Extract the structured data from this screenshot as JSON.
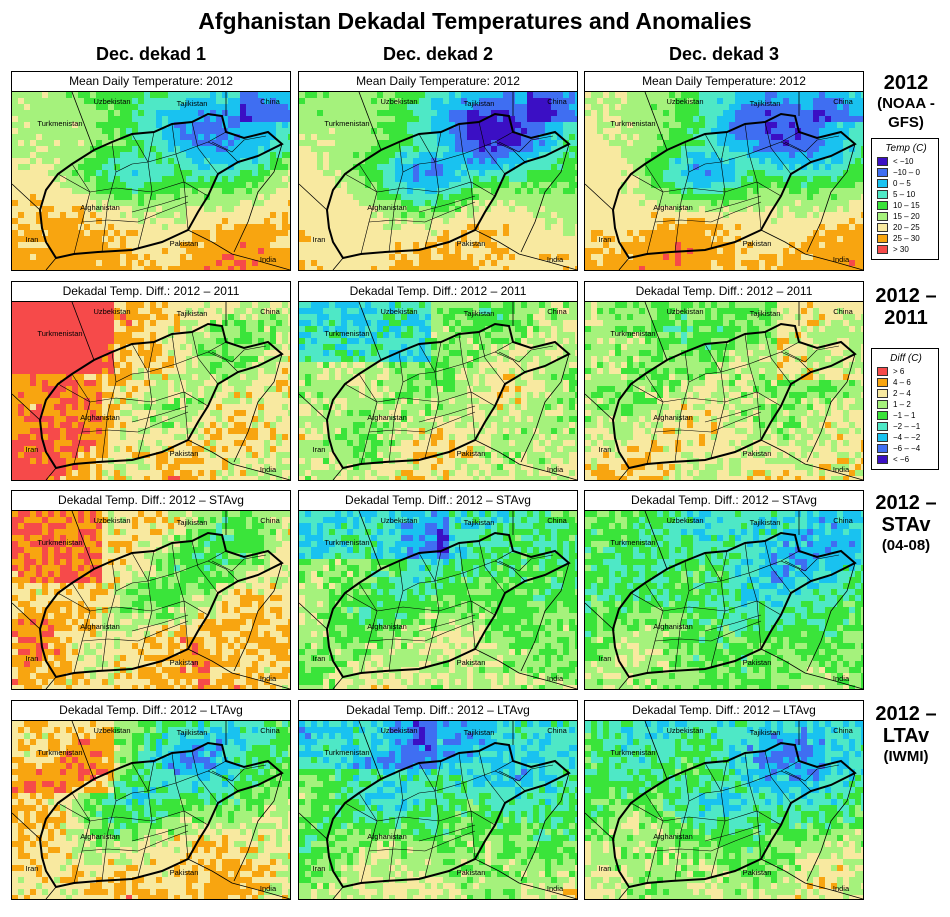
{
  "title": "Afghanistan Dekadal Temperatures and Anomalies",
  "columns": [
    "Dec. dekad 1",
    "Dec. dekad 2",
    "Dec. dekad 3"
  ],
  "rows": [
    {
      "panel_title": "Mean Daily Temperature: 2012",
      "label_main": "2012",
      "label_sub": "(NOAA -GFS)"
    },
    {
      "panel_title": "Dekadal Temp. Diff.: 2012 – 2011",
      "label_main": "2012 –2011",
      "label_sub": ""
    },
    {
      "panel_title": "Dekadal Temp. Diff.: 2012 – STAvg",
      "label_main": "2012 –STAv",
      "label_sub": "(04-08)"
    },
    {
      "panel_title": "Dekadal Temp. Diff.: 2012 – LTAvg",
      "label_main": "2012 –LTAv",
      "label_sub": "(IWMI)"
    }
  ],
  "map_labels": {
    "uzbekistan": "Uzbekistan",
    "tajikistan": "Tajikistan",
    "china": "China",
    "turkmenistan": "Turkmenistan",
    "afghanistan": "Afghanistan",
    "iran": "Iran",
    "pakistan": "Pakistan",
    "india": "India"
  },
  "legend_temp": {
    "title": "Temp (C)",
    "items": [
      {
        "label": "< −10",
        "color": "#3b0fc4"
      },
      {
        "label": "−10 – 0",
        "color": "#3f6ef2"
      },
      {
        "label": "0 – 5",
        "color": "#19c2f0"
      },
      {
        "label": "5 – 10",
        "color": "#4ee8c6"
      },
      {
        "label": "10 – 15",
        "color": "#3ae43a"
      },
      {
        "label": "15 – 20",
        "color": "#a5f27c"
      },
      {
        "label": "20 – 25",
        "color": "#f8e9a0"
      },
      {
        "label": "25 – 30",
        "color": "#f8a510"
      },
      {
        "label": "> 30",
        "color": "#f64a4a"
      }
    ]
  },
  "legend_diff": {
    "title": "Diff (C)",
    "items": [
      {
        "label": "> 6",
        "color": "#f64a4a"
      },
      {
        "label": "4 – 6",
        "color": "#f8a510"
      },
      {
        "label": "2 – 4",
        "color": "#f8e9a0"
      },
      {
        "label": "1 – 2",
        "color": "#a5f27c"
      },
      {
        "label": "−1 – 1",
        "color": "#3ae43a"
      },
      {
        "label": "−2 – −1",
        "color": "#4ee8c6"
      },
      {
        "label": "−4 – −2",
        "color": "#19c2f0"
      },
      {
        "label": "−6 – −4",
        "color": "#3f6ef2"
      },
      {
        "label": "< −6",
        "color": "#3b0fc4"
      }
    ]
  }
}
